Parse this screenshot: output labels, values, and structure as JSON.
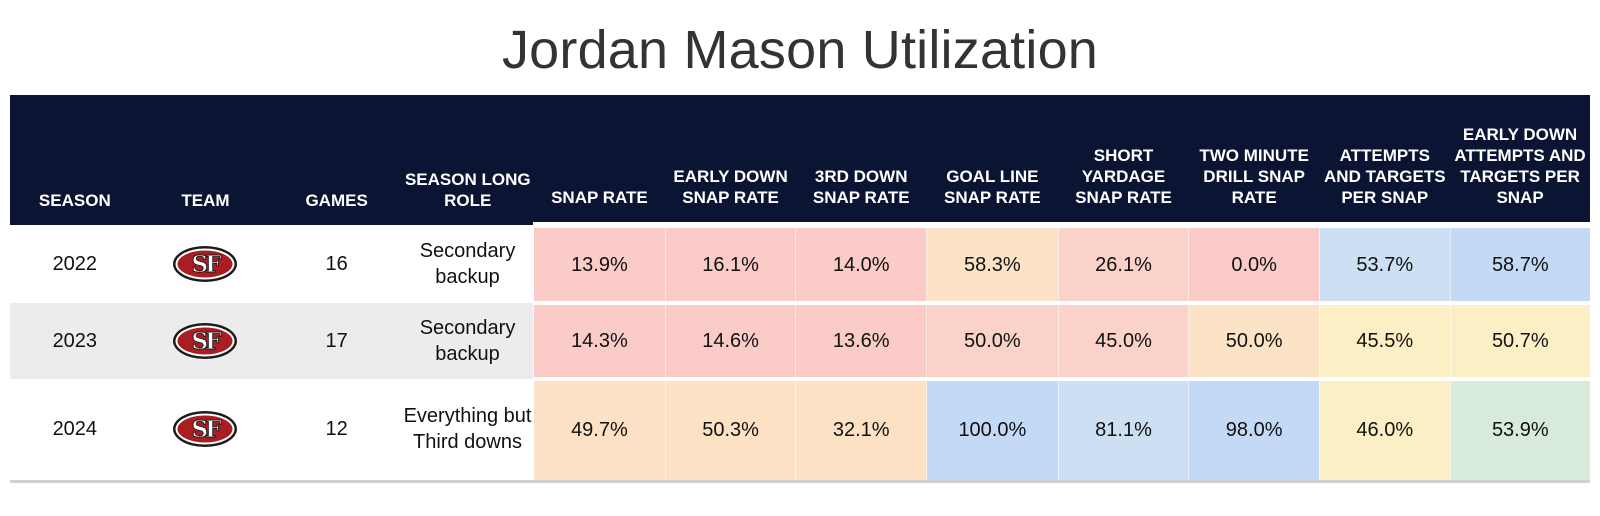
{
  "title": "Jordan Mason Utilization",
  "logo_text": "SF",
  "colors": {
    "header_bg": "#0c1433",
    "red": "#fbcbc7",
    "light_red": "#fad2c9",
    "peach": "#fce1c5",
    "light_orange": "#fde3c6",
    "yellow": "#fdefc5",
    "light_blue": "#cddff3",
    "blue": "#c4d9f6",
    "green": "#d8ead9"
  },
  "chart_data": {
    "type": "table",
    "columns": [
      "SEASON",
      "TEAM",
      "GAMES",
      "SEASON LONG ROLE",
      "SNAP RATE",
      "EARLY DOWN SNAP RATE",
      "3RD DOWN SNAP RATE",
      "GOAL LINE SNAP RATE",
      "SHORT YARDAGE SNAP RATE",
      "TWO MINUTE DRILL SNAP RATE",
      "ATTEMPTS AND TARGETS PER SNAP",
      "EARLY DOWN ATTEMPTS AND TARGETS PER SNAP"
    ],
    "rows": [
      {
        "season": "2022",
        "team": "San Francisco 49ers logo",
        "games": "16",
        "role": "Secondary backup",
        "metrics": [
          {
            "value": "13.9%",
            "color": "#fbcbc7"
          },
          {
            "value": "16.1%",
            "color": "#fbcbc7"
          },
          {
            "value": "14.0%",
            "color": "#fbcbc7"
          },
          {
            "value": "58.3%",
            "color": "#fde3c6"
          },
          {
            "value": "26.1%",
            "color": "#fad2c9"
          },
          {
            "value": "0.0%",
            "color": "#fbcbc7"
          },
          {
            "value": "53.7%",
            "color": "#cddff3"
          },
          {
            "value": "58.7%",
            "color": "#c4d9f6"
          }
        ]
      },
      {
        "season": "2023",
        "team": "San Francisco 49ers logo",
        "games": "17",
        "role": "Secondary backup",
        "metrics": [
          {
            "value": "14.3%",
            "color": "#fbcbc7"
          },
          {
            "value": "14.6%",
            "color": "#fbcbc7"
          },
          {
            "value": "13.6%",
            "color": "#fbcbc7"
          },
          {
            "value": "50.0%",
            "color": "#fad2c9"
          },
          {
            "value": "45.0%",
            "color": "#fad2c9"
          },
          {
            "value": "50.0%",
            "color": "#fde3c6"
          },
          {
            "value": "45.5%",
            "color": "#fdefc5"
          },
          {
            "value": "50.7%",
            "color": "#fdefc5"
          }
        ]
      },
      {
        "season": "2024",
        "team": "San Francisco 49ers logo",
        "games": "12",
        "role": "Everything but Third downs",
        "metrics": [
          {
            "value": "49.7%",
            "color": "#fce1c5"
          },
          {
            "value": "50.3%",
            "color": "#fce1c5"
          },
          {
            "value": "32.1%",
            "color": "#fce1c5"
          },
          {
            "value": "100.0%",
            "color": "#c4d9f6"
          },
          {
            "value": "81.1%",
            "color": "#cddff3"
          },
          {
            "value": "98.0%",
            "color": "#c4d9f6"
          },
          {
            "value": "46.0%",
            "color": "#fdefc5"
          },
          {
            "value": "53.9%",
            "color": "#d8ead9"
          }
        ]
      }
    ]
  }
}
